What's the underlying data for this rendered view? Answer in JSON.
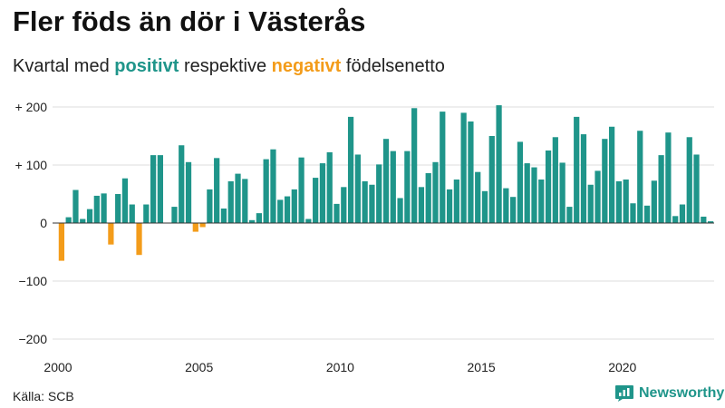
{
  "title": "Fler föds än dör i Västerås",
  "subtitle": {
    "part1": "Kvartal med ",
    "positive_word": "positivt",
    "part2": " respektive ",
    "negative_word": "negativt",
    "part3": " födelsenetto"
  },
  "source": "Källa: SCB",
  "brand": "Newsworthy",
  "colors": {
    "positive": "#1f958a",
    "negative": "#f39c1a",
    "grid": "#dddddd",
    "zero_line": "#333333"
  },
  "chart_data": {
    "type": "bar",
    "x_start": 2000,
    "periods_per_year": 4,
    "ylim": [
      -200,
      220
    ],
    "y_ticks": [
      {
        "value": 200,
        "label": "+ 200"
      },
      {
        "value": 100,
        "label": "+ 100"
      },
      {
        "value": 0,
        "label": "0"
      },
      {
        "value": -100,
        "label": "−100"
      },
      {
        "value": -200,
        "label": "−200"
      }
    ],
    "x_ticks": [
      {
        "value": 2000,
        "label": "2000"
      },
      {
        "value": 2005,
        "label": "2005"
      },
      {
        "value": 2010,
        "label": "2010"
      },
      {
        "value": 2015,
        "label": "2015"
      },
      {
        "value": 2020,
        "label": "2020"
      }
    ],
    "grid": true,
    "legend": "none",
    "values": [
      -65,
      10,
      57,
      7,
      24,
      47,
      51,
      -37,
      50,
      77,
      32,
      -55,
      32,
      117,
      117,
      0,
      28,
      134,
      105,
      -15,
      -7,
      58,
      112,
      25,
      72,
      85,
      76,
      5,
      17,
      110,
      127,
      40,
      46,
      58,
      113,
      7,
      78,
      103,
      122,
      33,
      62,
      183,
      118,
      72,
      66,
      101,
      145,
      124,
      43,
      124,
      198,
      62,
      86,
      105,
      192,
      58,
      75,
      190,
      175,
      88,
      55,
      150,
      203,
      60,
      45,
      140,
      103,
      96,
      75,
      125,
      148,
      104,
      28,
      183,
      153,
      66,
      90,
      145,
      166,
      72,
      75,
      34,
      159,
      30,
      73,
      117,
      156,
      12,
      32,
      148,
      118,
      11,
      3
    ]
  }
}
